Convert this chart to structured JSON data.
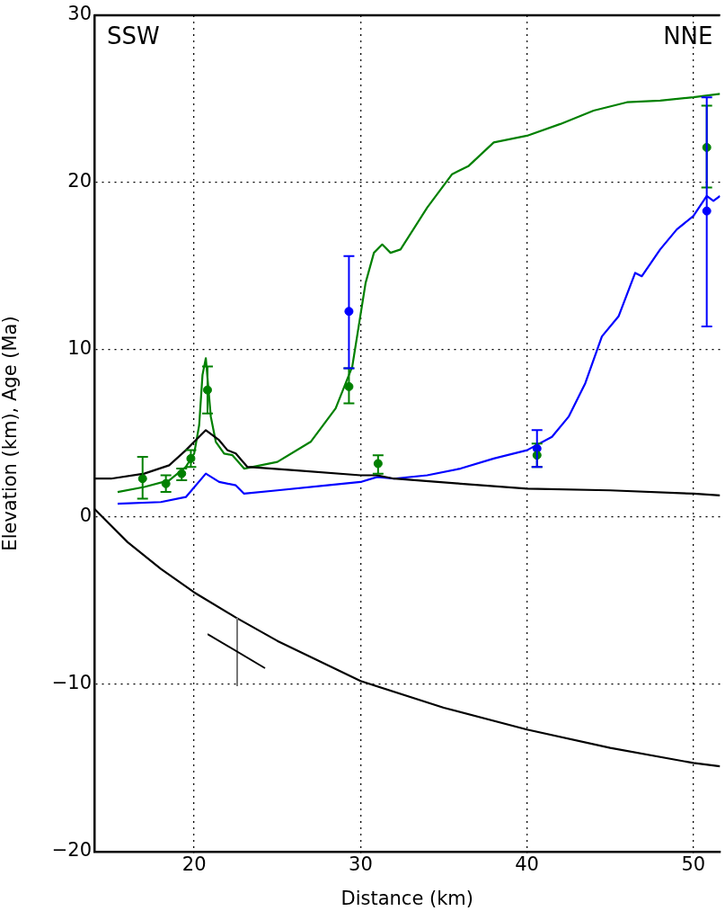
{
  "chart_data": {
    "type": "line",
    "xlabel": "Distance (km)",
    "ylabel": "Elevation (km), Age (Ma)",
    "annotations": [
      "SSW",
      "NNE"
    ],
    "xlim": [
      14,
      51.6
    ],
    "ylim": [
      -20,
      30
    ],
    "xticks": [
      20,
      30,
      40,
      50
    ],
    "yticks": [
      {
        "value": -20,
        "label": "−20"
      },
      {
        "value": -10,
        "label": "−10"
      },
      0,
      10,
      20,
      30
    ],
    "grid": true,
    "legend": false,
    "line_style": "solid",
    "series": [
      {
        "color": "#000000",
        "x": [
          14,
          15,
          17,
          18.5,
          19.5,
          20,
          20.7,
          21.5,
          22,
          22.5,
          23.2,
          26,
          30,
          31,
          32,
          36,
          40,
          45,
          50,
          51.6
        ],
        "values": [
          2.3,
          2.3,
          2.6,
          3.1,
          4.0,
          4.5,
          5.2,
          4.6,
          4.0,
          3.8,
          3.0,
          2.8,
          2.5,
          2.5,
          2.3,
          2.0,
          1.7,
          1.6,
          1.4,
          1.3
        ]
      },
      {
        "color": "#000000",
        "x": [
          14,
          16,
          18,
          20,
          22.5,
          25,
          30,
          35,
          40,
          45,
          50,
          51.6
        ],
        "values": [
          0.5,
          -1.5,
          -3.1,
          -4.5,
          -6.0,
          -7.4,
          -9.8,
          -11.4,
          -12.7,
          -13.8,
          -14.7,
          -14.9
        ]
      },
      {
        "color": "#008000",
        "x": [
          15.4,
          17,
          18.5,
          19.5,
          20,
          20.3,
          20.5,
          20.7,
          21,
          21.3,
          21.8,
          22.3,
          23,
          25,
          27,
          28.5,
          29.5,
          30.3,
          30.8,
          31.3,
          31.8,
          32.4,
          34,
          35.5,
          36.5,
          38,
          40,
          42,
          44,
          46,
          48,
          50,
          51.6
        ],
        "values": [
          1.5,
          1.8,
          2.2,
          3.0,
          3.8,
          5.5,
          8.5,
          9.5,
          6,
          4.5,
          3.8,
          3.7,
          2.9,
          3.3,
          4.5,
          6.5,
          9,
          14,
          15.8,
          16.3,
          15.8,
          16,
          18.5,
          20.5,
          21,
          22.4,
          22.8,
          23.5,
          24.3,
          24.8,
          24.9,
          25.1,
          25.3
        ]
      },
      {
        "color": "#0000ff",
        "x": [
          15.4,
          18,
          19.5,
          20.7,
          21.5,
          22.5,
          23,
          25,
          28,
          30,
          31,
          32,
          34,
          36,
          38,
          40,
          41.5,
          42.5,
          43.5,
          44.5,
          45.5,
          46.5,
          46.9,
          48,
          49,
          50,
          50.8,
          51.2,
          51.6
        ],
        "values": [
          0.8,
          0.9,
          1.2,
          2.6,
          2.1,
          1.9,
          1.4,
          1.6,
          1.9,
          2.1,
          2.4,
          2.3,
          2.5,
          2.9,
          3.5,
          4.0,
          4.8,
          6,
          8,
          10.8,
          12,
          14.6,
          14.4,
          16.0,
          17.2,
          18.0,
          19.2,
          18.9,
          19.2
        ]
      },
      {
        "type": "scatter",
        "color": "#008000",
        "marker": "circle",
        "x": [
          16.9,
          18.3,
          19.25,
          19.8,
          20.8,
          50.8,
          29.3,
          31.05,
          40.6
        ],
        "values": [
          2.3,
          2.0,
          2.6,
          3.5,
          7.6,
          22.1,
          7.8,
          3.2,
          3.7
        ],
        "errors": [
          [
            1.1,
            3.6
          ],
          [
            1.5,
            2.5
          ],
          [
            2.2,
            2.9
          ],
          [
            3.0,
            4.0
          ],
          [
            6.2,
            9.0
          ],
          [
            19.7,
            24.6
          ],
          [
            6.8,
            8.9
          ],
          [
            2.6,
            3.7
          ],
          [
            3.0,
            4.4
          ]
        ]
      },
      {
        "type": "scatter",
        "color": "#0000ff",
        "marker": "circle",
        "x": [
          29.3,
          40.6,
          50.8
        ],
        "values": [
          12.3,
          4.1,
          18.3
        ],
        "errors": [
          [
            8.9,
            15.6
          ],
          [
            3.0,
            5.2
          ],
          [
            11.4,
            25.1
          ]
        ]
      }
    ]
  }
}
